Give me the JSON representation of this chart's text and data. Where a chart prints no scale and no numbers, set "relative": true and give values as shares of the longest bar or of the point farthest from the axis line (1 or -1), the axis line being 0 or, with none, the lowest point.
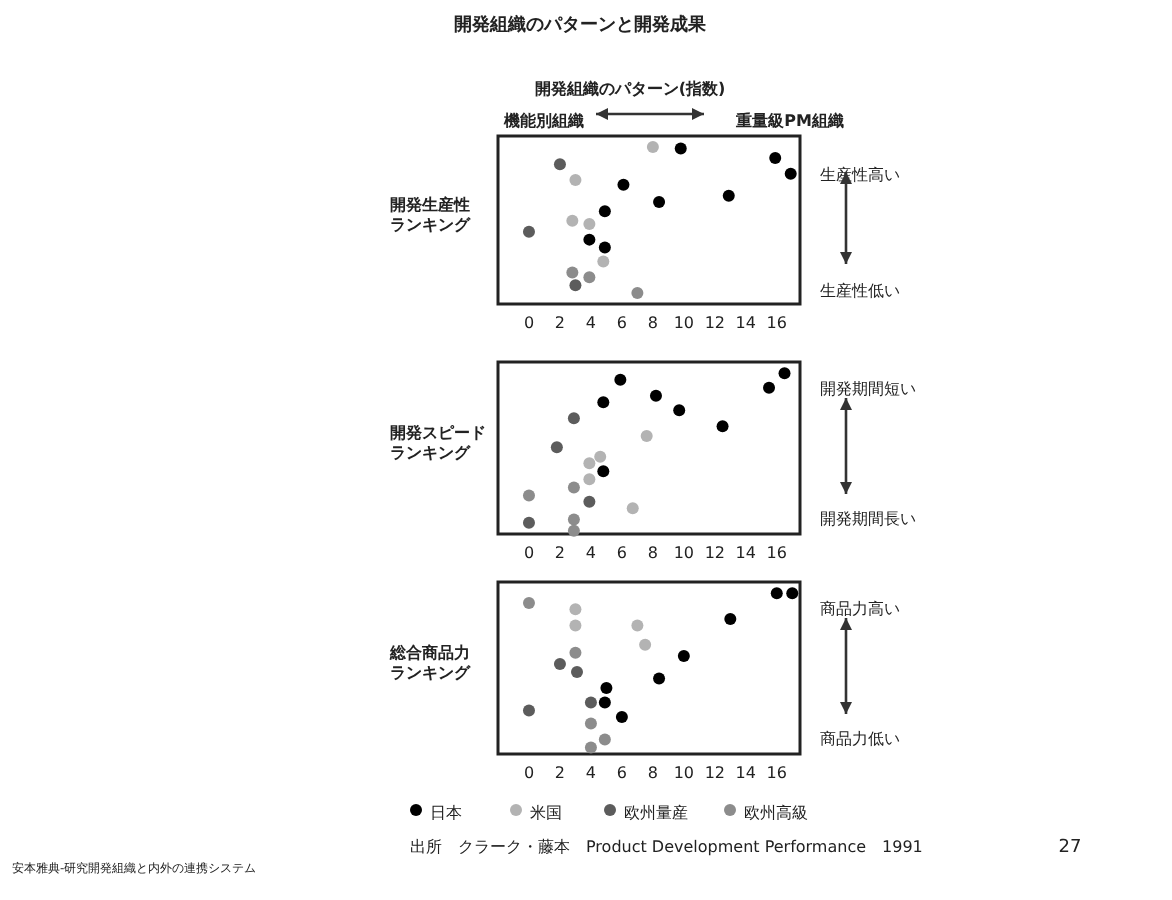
{
  "chart_data": [
    {
      "type": "scatter",
      "title": "開発組織のパターンと開発成果",
      "subtitle": "開発組織のパターン(指数)",
      "ylabel": "開発生産性ランキング",
      "annotations": [
        "機能別組織",
        "重量級PM組織",
        "生産性高い",
        "生産性低い"
      ],
      "relative": true,
      "marker": "circle",
      "xlim": [
        -2,
        17.5
      ],
      "xticks": [
        0,
        2,
        4,
        6,
        8,
        10,
        12,
        14,
        16
      ],
      "series": [
        {
          "color": "#000000",
          "x": [
            6.1,
            9.8,
            15.9,
            16.9,
            12.9,
            8.4,
            4.9,
            4.9,
            3.9
          ],
          "values": [
            0.76,
            0.99,
            0.93,
            0.83,
            0.69,
            0.65,
            0.59,
            0.36,
            0.41
          ]
        },
        {
          "color": "#b3b3b3",
          "x": [
            8,
            3,
            2.8,
            3.9,
            4.8
          ],
          "values": [
            1,
            0.79,
            0.53,
            0.51,
            0.27
          ]
        },
        {
          "color": "#5c5c5c",
          "x": [
            2,
            0,
            3
          ],
          "values": [
            0.89,
            0.46,
            0.12
          ]
        },
        {
          "color": "#8c8c8c",
          "x": [
            2.8,
            3.9,
            7
          ],
          "values": [
            0.2,
            0.17,
            0.07
          ]
        }
      ]
    },
    {
      "type": "scatter",
      "ylabel": "開発スピードランキング",
      "annotations": [
        "開発期間短い",
        "開発期間長い"
      ],
      "relative": true,
      "marker": "circle",
      "xlim": [
        -2,
        17.5
      ],
      "xticks": [
        0,
        2,
        4,
        6,
        8,
        10,
        12,
        14,
        16
      ],
      "series": [
        {
          "color": "#000000",
          "x": [
            5.9,
            16.5,
            15.5,
            8.2,
            4.8,
            9.7,
            12.5,
            4.8
          ],
          "values": [
            0.96,
            1,
            0.91,
            0.86,
            0.82,
            0.77,
            0.67,
            0.39
          ]
        },
        {
          "color": "#b3b3b3",
          "x": [
            7.6,
            4.6,
            3.9,
            3.9,
            6.7
          ],
          "values": [
            0.61,
            0.48,
            0.44,
            0.34,
            0.16
          ]
        },
        {
          "color": "#5c5c5c",
          "x": [
            2.9,
            1.8,
            3.9,
            0
          ],
          "values": [
            0.72,
            0.54,
            0.2,
            0.07
          ]
        },
        {
          "color": "#8c8c8c",
          "x": [
            2.9,
            0,
            2.9,
            2.9
          ],
          "values": [
            0.29,
            0.24,
            0.09,
            0.02
          ]
        }
      ]
    },
    {
      "type": "scatter",
      "ylabel": "総合商品力ランキング",
      "annotations": [
        "商品力高い",
        "商品力低い",
        "出所　クラーク・藤本　Product Development Performance　1991",
        "27",
        "安本雅典-研究開発組織と内外の連携システム"
      ],
      "relative": true,
      "marker": "circle",
      "legend": "bottom",
      "xlim": [
        -2,
        17.5
      ],
      "xticks": [
        0,
        2,
        4,
        6,
        8,
        10,
        12,
        14,
        16
      ],
      "series": [
        {
          "name": "日本",
          "color": "#000000",
          "x": [
            16,
            17,
            13,
            10,
            8.4,
            5,
            4.9,
            6
          ],
          "values": [
            1,
            1,
            0.84,
            0.61,
            0.47,
            0.41,
            0.32,
            0.23
          ]
        },
        {
          "name": "米国",
          "color": "#b3b3b3",
          "x": [
            7,
            7.5,
            3,
            3
          ],
          "values": [
            0.8,
            0.68,
            0.8,
            0.9
          ]
        },
        {
          "name": "欧州量産",
          "color": "#5c5c5c",
          "x": [
            2,
            3.1,
            4,
            0
          ],
          "values": [
            0.56,
            0.51,
            0.32,
            0.27
          ]
        },
        {
          "name": "欧州高級",
          "color": "#8c8c8c",
          "x": [
            0,
            3,
            4,
            4.9,
            4
          ],
          "values": [
            0.94,
            0.63,
            0.19,
            0.09,
            0.04
          ]
        }
      ]
    }
  ]
}
